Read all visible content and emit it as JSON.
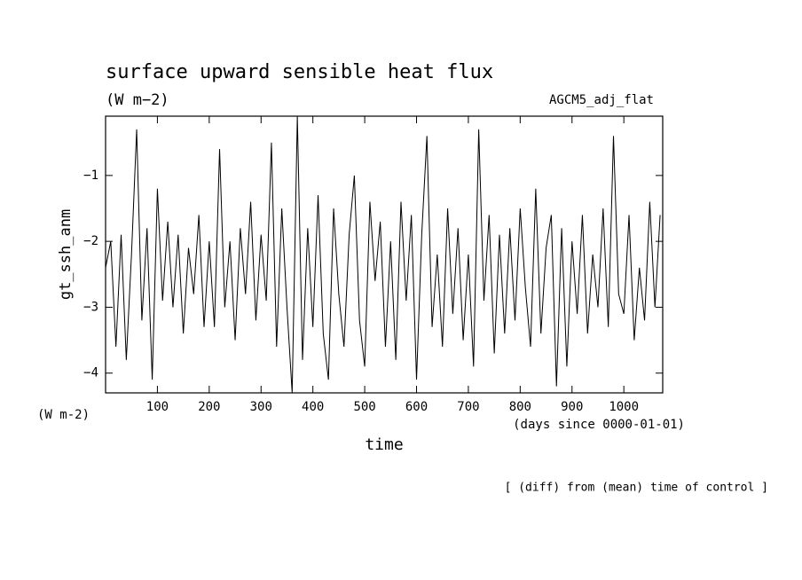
{
  "chart_data": {
    "type": "line",
    "title": "surface upward sensible heat flux",
    "subtitle": "(W m−2)",
    "annotation_right": "AGCM5_adj_flat",
    "ylabel": "gt_ssh_anm",
    "xlabel": "time",
    "y_unit_note": "(W m-2)",
    "x_unit_note": "(days since 0000-01-01)",
    "footnote": "[ (diff) from (mean) time of control ]",
    "xlim": [
      0,
      1075
    ],
    "ylim": [
      -4.3,
      -0.1
    ],
    "xticks": [
      100,
      200,
      300,
      400,
      500,
      600,
      700,
      800,
      900,
      1000
    ],
    "yticks": [
      {
        "value": -1,
        "label": "−1"
      },
      {
        "value": -2,
        "label": "−2"
      },
      {
        "value": -3,
        "label": "−3"
      },
      {
        "value": -4,
        "label": "−4"
      }
    ],
    "color": "#000000",
    "x": [
      0,
      10,
      20,
      30,
      40,
      50,
      60,
      70,
      80,
      90,
      100,
      110,
      120,
      130,
      140,
      150,
      160,
      170,
      180,
      190,
      200,
      210,
      220,
      230,
      240,
      250,
      260,
      270,
      280,
      290,
      300,
      310,
      320,
      330,
      340,
      350,
      360,
      370,
      380,
      390,
      400,
      410,
      420,
      430,
      440,
      450,
      460,
      470,
      480,
      490,
      500,
      510,
      520,
      530,
      540,
      550,
      560,
      570,
      580,
      590,
      600,
      610,
      620,
      630,
      640,
      650,
      660,
      670,
      680,
      690,
      700,
      710,
      720,
      730,
      740,
      750,
      760,
      770,
      780,
      790,
      800,
      810,
      820,
      830,
      840,
      850,
      860,
      870,
      880,
      890,
      900,
      910,
      920,
      930,
      940,
      950,
      960,
      970,
      980,
      990,
      1000,
      1010,
      1020,
      1030,
      1040,
      1050,
      1060,
      1070
    ],
    "values": [
      -2.4,
      -2.0,
      -3.6,
      -1.9,
      -3.8,
      -2.2,
      -0.3,
      -3.2,
      -1.8,
      -4.1,
      -1.2,
      -2.9,
      -1.7,
      -3.0,
      -1.9,
      -3.4,
      -2.1,
      -2.8,
      -1.6,
      -3.3,
      -2.0,
      -3.3,
      -0.6,
      -3.0,
      -2.0,
      -3.5,
      -1.8,
      -2.8,
      -1.4,
      -3.2,
      -1.9,
      -2.9,
      -0.5,
      -3.6,
      -1.5,
      -3.0,
      -4.3,
      -0.1,
      -3.8,
      -1.8,
      -3.3,
      -1.3,
      -3.4,
      -4.1,
      -1.5,
      -2.8,
      -3.6,
      -1.9,
      -1.0,
      -3.2,
      -3.9,
      -1.4,
      -2.6,
      -1.7,
      -3.6,
      -2.0,
      -3.8,
      -1.4,
      -2.9,
      -1.6,
      -4.1,
      -1.9,
      -0.4,
      -3.3,
      -2.2,
      -3.6,
      -1.5,
      -3.1,
      -1.8,
      -3.5,
      -2.2,
      -3.9,
      -0.3,
      -2.9,
      -1.6,
      -3.7,
      -1.9,
      -3.4,
      -1.8,
      -3.2,
      -1.5,
      -2.7,
      -3.6,
      -1.2,
      -3.4,
      -2.1,
      -1.6,
      -4.2,
      -1.8,
      -3.9,
      -2.0,
      -3.1,
      -1.6,
      -3.4,
      -2.2,
      -3.0,
      -1.5,
      -3.3,
      -0.4,
      -2.8,
      -3.1,
      -1.6,
      -3.5,
      -2.4,
      -3.2,
      -1.4,
      -3.0,
      -1.6
    ]
  }
}
